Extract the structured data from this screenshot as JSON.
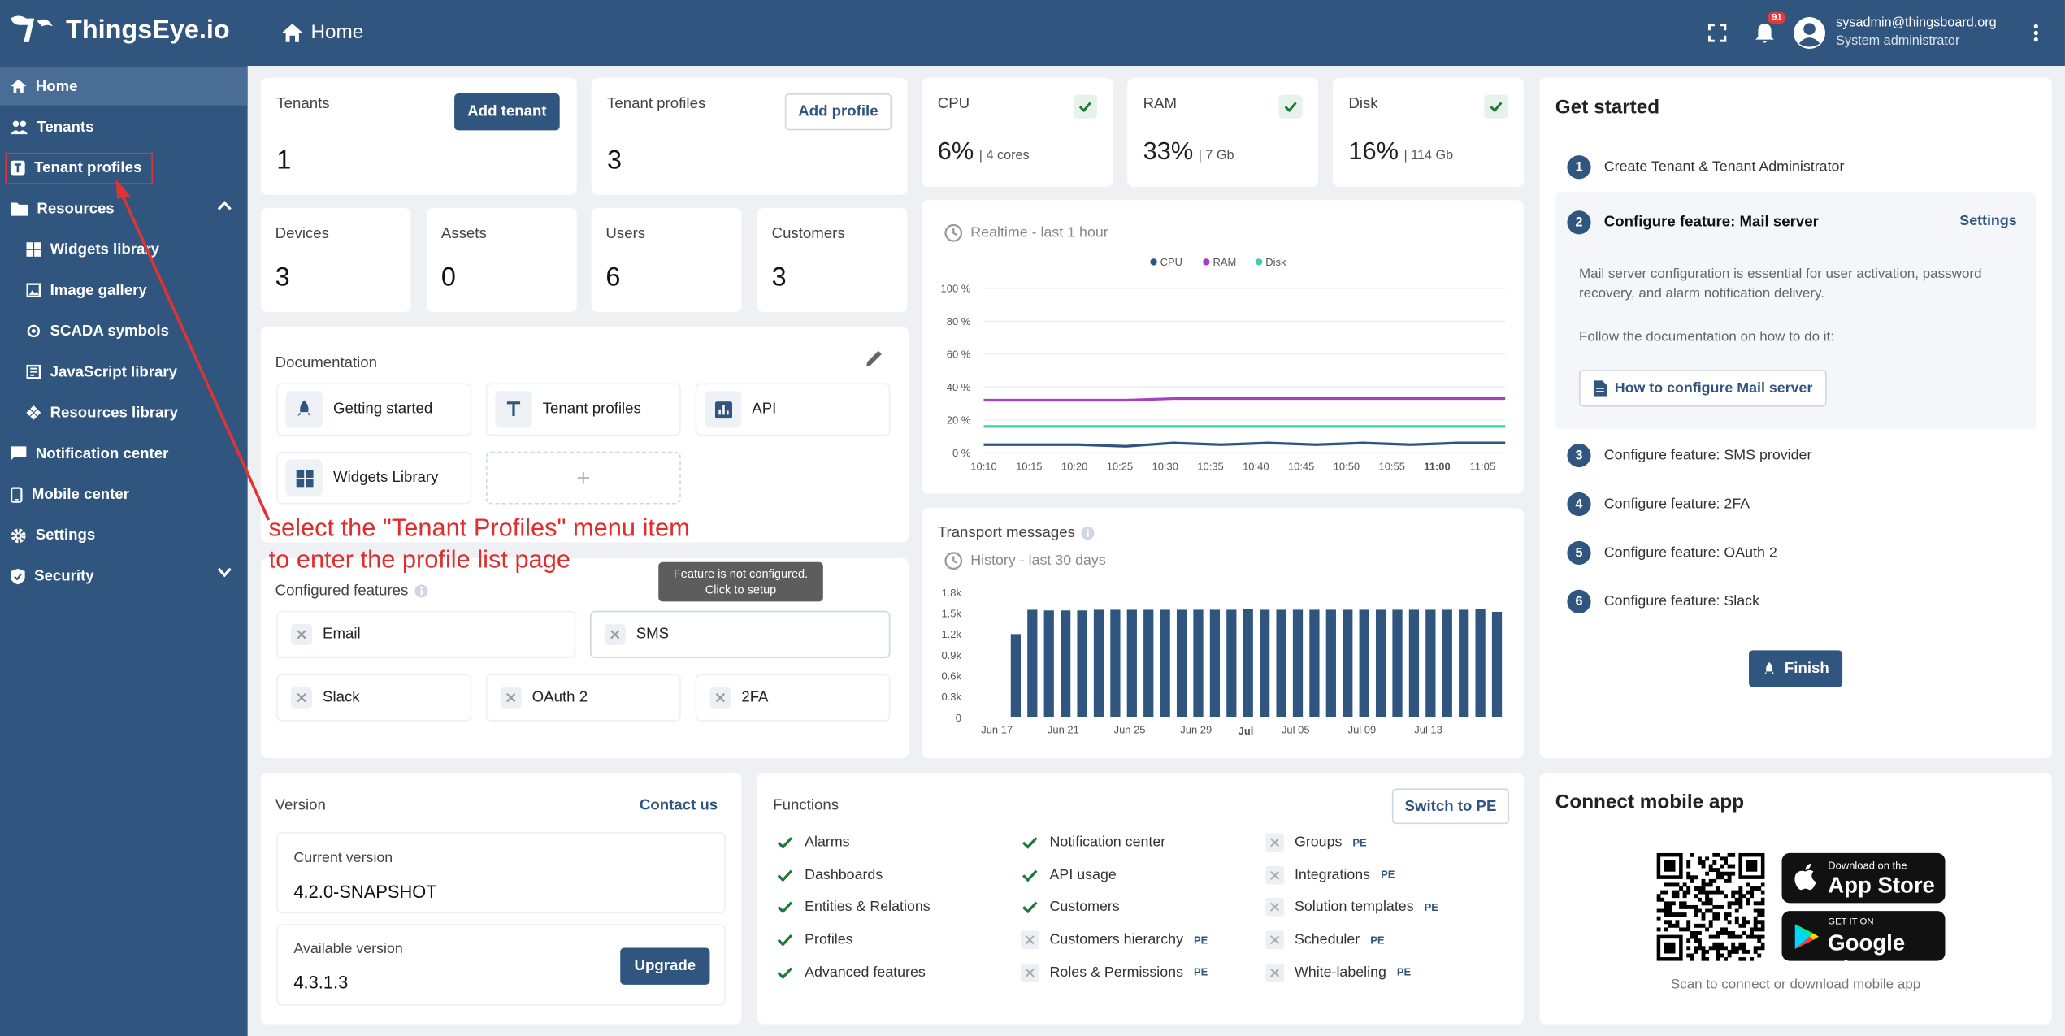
{
  "app": {
    "brand": "ThingsEye.io",
    "page_title": "Home"
  },
  "topbar": {
    "notification_count": "91",
    "user_email": "sysadmin@thingsboard.org",
    "user_role": "System administrator"
  },
  "sidebar": {
    "items": [
      {
        "label": "Home",
        "icon": "home-icon"
      },
      {
        "label": "Tenants",
        "icon": "tenants-icon"
      },
      {
        "label": "Tenant profiles",
        "icon": "tenant-profiles-icon"
      },
      {
        "label": "Resources",
        "icon": "folder-icon"
      },
      {
        "label": "Widgets library",
        "icon": "widgets-icon"
      },
      {
        "label": "Image gallery",
        "icon": "image-icon"
      },
      {
        "label": "SCADA symbols",
        "icon": "scada-icon"
      },
      {
        "label": "JavaScript library",
        "icon": "javascript-icon"
      },
      {
        "label": "Resources library",
        "icon": "resources-icon"
      },
      {
        "label": "Notification center",
        "icon": "notification-icon"
      },
      {
        "label": "Mobile center",
        "icon": "mobile-icon"
      },
      {
        "label": "Settings",
        "icon": "gear-icon"
      },
      {
        "label": "Security",
        "icon": "shield-icon"
      }
    ]
  },
  "stats": {
    "tenants": {
      "label": "Tenants",
      "value": "1",
      "button": "Add tenant"
    },
    "tenant_profiles": {
      "label": "Tenant profiles",
      "value": "3",
      "button": "Add profile"
    },
    "devices": {
      "label": "Devices",
      "value": "3"
    },
    "assets": {
      "label": "Assets",
      "value": "0"
    },
    "users": {
      "label": "Users",
      "value": "6"
    },
    "customers": {
      "label": "Customers",
      "value": "3"
    }
  },
  "system": {
    "cpu": {
      "label": "CPU",
      "value": "6%",
      "detail": "| 4 cores"
    },
    "ram": {
      "label": "RAM",
      "value": "33%",
      "detail": "| 7 Gb"
    },
    "disk": {
      "label": "Disk",
      "value": "16%",
      "detail": "| 114 Gb"
    }
  },
  "documentation": {
    "title": "Documentation",
    "links": [
      "Getting started",
      "Tenant profiles",
      "API",
      "Widgets Library"
    ],
    "add_symbol": "+"
  },
  "annotation": {
    "line1": "select the \"Tenant Profiles\" menu item",
    "line2": "to enter the profile list page"
  },
  "features": {
    "title": "Configured features",
    "tooltip_line1": "Feature is not configured.",
    "tooltip_line2": "Click to setup",
    "items": [
      "Email",
      "SMS",
      "Slack",
      "OAuth 2",
      "2FA"
    ]
  },
  "realtime": {
    "title": "Realtime - last 1 hour",
    "legend": [
      "CPU",
      "RAM",
      "Disk"
    ]
  },
  "transport": {
    "title": "Transport messages",
    "subtitle": "History - last 30 days"
  },
  "colors": {
    "primary": "#305680",
    "cpu": "#305680",
    "ram": "#a53fc6",
    "disk": "#3fcfab",
    "annotation": "#e23333"
  },
  "chart_data": [
    {
      "type": "line",
      "title": "Realtime - last 1 hour",
      "x": [
        "10:10",
        "10:15",
        "10:20",
        "10:25",
        "10:30",
        "10:35",
        "10:40",
        "10:45",
        "10:50",
        "10:55",
        "11:00",
        "11:05"
      ],
      "y_ticks": [
        "0 %",
        "20 %",
        "40 %",
        "60 %",
        "80 %",
        "100 %"
      ],
      "ylim": [
        0,
        100
      ],
      "series": [
        {
          "name": "CPU",
          "values": [
            5,
            5,
            5,
            4,
            6,
            5,
            6,
            5,
            6,
            5,
            6,
            6
          ]
        },
        {
          "name": "RAM",
          "values": [
            32,
            32,
            32,
            32,
            33,
            33,
            33,
            33,
            33,
            33,
            33,
            33
          ]
        },
        {
          "name": "Disk",
          "values": [
            16,
            16,
            16,
            16,
            16,
            16,
            16,
            16,
            16,
            16,
            16,
            16
          ]
        }
      ],
      "grid": true,
      "legend": "top-center"
    },
    {
      "type": "bar",
      "title": "History - last 30 days",
      "x_ticks": [
        "Jun 17",
        "Jun 21",
        "Jun 25",
        "Jun 29",
        "Jul",
        "Jul 05",
        "Jul 09",
        "Jul 13"
      ],
      "y_ticks": [
        "0",
        "0.3k",
        "0.6k",
        "0.9k",
        "1.2k",
        "1.5k",
        "1.8k"
      ],
      "ylim": [
        0,
        1800
      ],
      "values": [
        1200,
        1550,
        1540,
        1540,
        1540,
        1550,
        1550,
        1550,
        1550,
        1550,
        1550,
        1550,
        1550,
        1550,
        1560,
        1550,
        1550,
        1550,
        1550,
        1550,
        1550,
        1550,
        1550,
        1550,
        1550,
        1550,
        1550,
        1550,
        1560,
        1520
      ]
    }
  ],
  "get_started": {
    "title": "Get started",
    "steps": [
      {
        "num": "1",
        "label": "Create Tenant & Tenant Administrator"
      },
      {
        "num": "2",
        "label": "Configure feature: Mail server"
      },
      {
        "num": "3",
        "label": "Configure feature: SMS provider"
      },
      {
        "num": "4",
        "label": "Configure feature: 2FA"
      },
      {
        "num": "5",
        "label": "Configure feature: OAuth 2"
      },
      {
        "num": "6",
        "label": "Configure feature: Slack"
      }
    ],
    "settings_link": "Settings",
    "mail_desc": "Mail server configuration is essential for user activation, password recovery, and alarm notification delivery.",
    "mail_follow": "Follow the documentation on how to do it:",
    "mail_button": "How to configure Mail server",
    "finish": "Finish"
  },
  "version": {
    "title": "Version",
    "contact": "Contact us",
    "current_label": "Current version",
    "current": "4.2.0-SNAPSHOT",
    "available_label": "Available version",
    "available": "4.3.1.3",
    "upgrade": "Upgrade"
  },
  "functions": {
    "title": "Functions",
    "switch": "Switch to PE",
    "pe": "PE",
    "col1": [
      {
        "label": "Alarms",
        "on": true
      },
      {
        "label": "Dashboards",
        "on": true
      },
      {
        "label": "Entities & Relations",
        "on": true
      },
      {
        "label": "Profiles",
        "on": true
      },
      {
        "label": "Advanced features",
        "on": true
      }
    ],
    "col2": [
      {
        "label": "Notification center",
        "on": true
      },
      {
        "label": "API usage",
        "on": true
      },
      {
        "label": "Customers",
        "on": true
      },
      {
        "label": "Customers hierarchy",
        "on": false
      },
      {
        "label": "Roles & Permissions",
        "on": false
      }
    ],
    "col3": [
      {
        "label": "Groups",
        "on": false
      },
      {
        "label": "Integrations",
        "on": false
      },
      {
        "label": "Solution templates",
        "on": false
      },
      {
        "label": "Scheduler",
        "on": false
      },
      {
        "label": "White-labeling",
        "on": false
      }
    ]
  },
  "mobile": {
    "title": "Connect mobile app",
    "scan": "Scan to connect or download mobile app",
    "appstore_small": "Download on the",
    "appstore_big": "App Store",
    "gplay_small": "GET IT ON",
    "gplay_big": "Google Play"
  }
}
